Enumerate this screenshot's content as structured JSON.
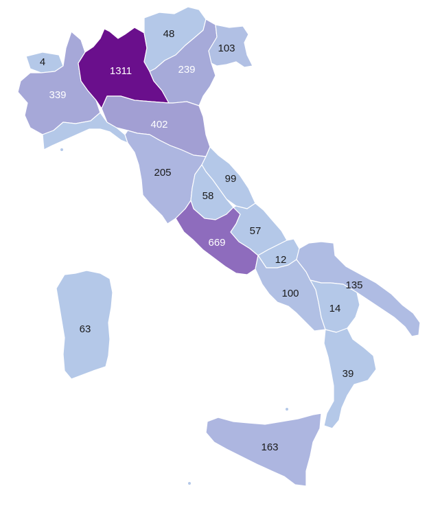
{
  "regions": [
    {
      "id": "valle-d-aosta",
      "value": "4",
      "fill": "#b4c8e8",
      "text_color": "#1a1a1a"
    },
    {
      "id": "piemonte",
      "value": "339",
      "fill": "#a6a8d8",
      "text_color": "#ffffff"
    },
    {
      "id": "lombardia",
      "value": "1311",
      "fill": "#6a0f8c",
      "text_color": "#ffffff"
    },
    {
      "id": "trentino-alto-adige",
      "value": "48",
      "fill": "#b4c8e8",
      "text_color": "#1a1a1a"
    },
    {
      "id": "veneto",
      "value": "239",
      "fill": "#a6aad9",
      "text_color": "#ffffff"
    },
    {
      "id": "friuli-venezia-giulia",
      "value": "103",
      "fill": "#b1c0e4",
      "text_color": "#1a1a1a"
    },
    {
      "id": "liguria",
      "value": "",
      "fill": "#b4c8e8",
      "text_color": "#1a1a1a"
    },
    {
      "id": "emilia-romagna",
      "value": "402",
      "fill": "#a29fd3",
      "text_color": "#ffffff"
    },
    {
      "id": "toscana",
      "value": "205",
      "fill": "#adb6e0",
      "text_color": "#1a1a1a"
    },
    {
      "id": "marche",
      "value": "99",
      "fill": "#b4c8e8",
      "text_color": "#1a1a1a"
    },
    {
      "id": "umbria",
      "value": "58",
      "fill": "#b4c8e8",
      "text_color": "#1a1a1a"
    },
    {
      "id": "lazio",
      "value": "669",
      "fill": "#8e6cbd",
      "text_color": "#ffffff"
    },
    {
      "id": "abruzzo",
      "value": "57",
      "fill": "#b4c8e8",
      "text_color": "#1a1a1a"
    },
    {
      "id": "molise",
      "value": "12",
      "fill": "#b4c8e8",
      "text_color": "#1a1a1a"
    },
    {
      "id": "campania",
      "value": "100",
      "fill": "#b1c0e4",
      "text_color": "#1a1a1a"
    },
    {
      "id": "puglia",
      "value": "135",
      "fill": "#afbce3",
      "text_color": "#1a1a1a"
    },
    {
      "id": "basilicata",
      "value": "14",
      "fill": "#b4c8e8",
      "text_color": "#1a1a1a"
    },
    {
      "id": "calabria",
      "value": "39",
      "fill": "#b4c8e8",
      "text_color": "#1a1a1a"
    },
    {
      "id": "sardegna",
      "value": "63",
      "fill": "#b4c8e8",
      "text_color": "#1a1a1a"
    },
    {
      "id": "sicilia",
      "value": "163",
      "fill": "#adb6e0",
      "text_color": "#1a1a1a"
    }
  ]
}
